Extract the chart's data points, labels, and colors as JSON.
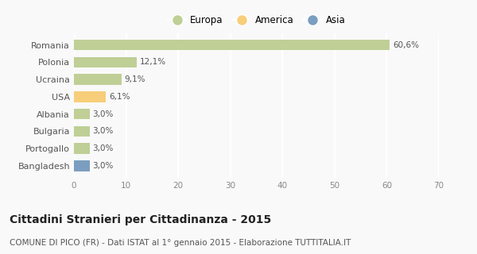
{
  "categories": [
    "Romania",
    "Polonia",
    "Ucraina",
    "USA",
    "Albania",
    "Bulgaria",
    "Portogallo",
    "Bangladesh"
  ],
  "values": [
    60.6,
    12.1,
    9.1,
    6.1,
    3.0,
    3.0,
    3.0,
    3.0
  ],
  "labels": [
    "60,6%",
    "12,1%",
    "9,1%",
    "6,1%",
    "3,0%",
    "3,0%",
    "3,0%",
    "3,0%"
  ],
  "colors": [
    "#bfcf96",
    "#bfcf96",
    "#bfcf96",
    "#f7ce7a",
    "#bfcf96",
    "#bfcf96",
    "#bfcf96",
    "#7b9ec0"
  ],
  "legend_labels": [
    "Europa",
    "America",
    "Asia"
  ],
  "legend_colors": [
    "#bfcf96",
    "#f7ce7a",
    "#7b9ec0"
  ],
  "xlim": [
    0,
    70
  ],
  "xticks": [
    0,
    10,
    20,
    30,
    40,
    50,
    60,
    70
  ],
  "title": "Cittadini Stranieri per Cittadinanza - 2015",
  "subtitle": "COMUNE DI PICO (FR) - Dati ISTAT al 1° gennaio 2015 - Elaborazione TUTTITALIA.IT",
  "title_fontsize": 10,
  "subtitle_fontsize": 7.5,
  "background_color": "#f9f9f9",
  "grid_color": "#ffffff",
  "bar_height": 0.62
}
